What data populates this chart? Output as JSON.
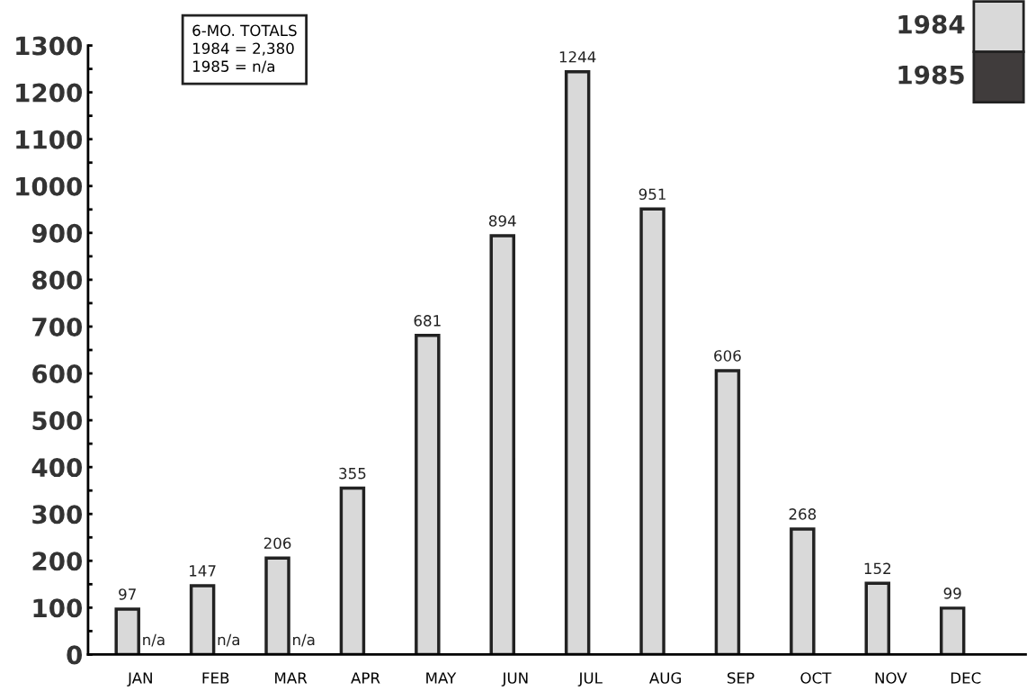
{
  "chart_data": {
    "type": "bar",
    "categories": [
      "JAN",
      "FEB",
      "MAR",
      "APR",
      "MAY",
      "JUN",
      "JUL",
      "AUG",
      "SEP",
      "OCT",
      "NOV",
      "DEC"
    ],
    "series": [
      {
        "name": "1984",
        "color": "#d9d9d9",
        "values": [
          97,
          147,
          206,
          355,
          681,
          894,
          1244,
          951,
          606,
          268,
          152,
          99
        ]
      },
      {
        "name": "1985",
        "color": "#403c3c",
        "values": [
          null,
          null,
          null,
          null,
          null,
          null,
          null,
          null,
          null,
          null,
          null,
          null
        ],
        "value_labels": [
          "n/a",
          "n/a",
          "n/a",
          null,
          null,
          null,
          null,
          null,
          null,
          null,
          null,
          null
        ]
      }
    ],
    "data_labels": true,
    "ylim": [
      0,
      1300
    ],
    "yticks": [
      0,
      {
        "value": 50,
        "label": null
      },
      100,
      {
        "value": 150,
        "label": null
      },
      200,
      {
        "value": 250,
        "label": null
      },
      300,
      {
        "value": 350,
        "label": null
      },
      400,
      {
        "value": 450,
        "label": null
      },
      500,
      {
        "value": 550,
        "label": null
      },
      600,
      {
        "value": 650,
        "label": null
      },
      700,
      {
        "value": 750,
        "label": null
      },
      800,
      {
        "value": 850,
        "label": null
      },
      900,
      {
        "value": 950,
        "label": null
      },
      1000,
      {
        "value": 1050,
        "label": null
      },
      1100,
      {
        "value": 1150,
        "label": null
      },
      1200,
      {
        "value": 1250,
        "label": null
      },
      1300
    ],
    "annotations": [
      "6-MO. TOTALS\n1984 = 2,380\n1985 = n/a"
    ],
    "legend": "top right",
    "grid": false
  }
}
